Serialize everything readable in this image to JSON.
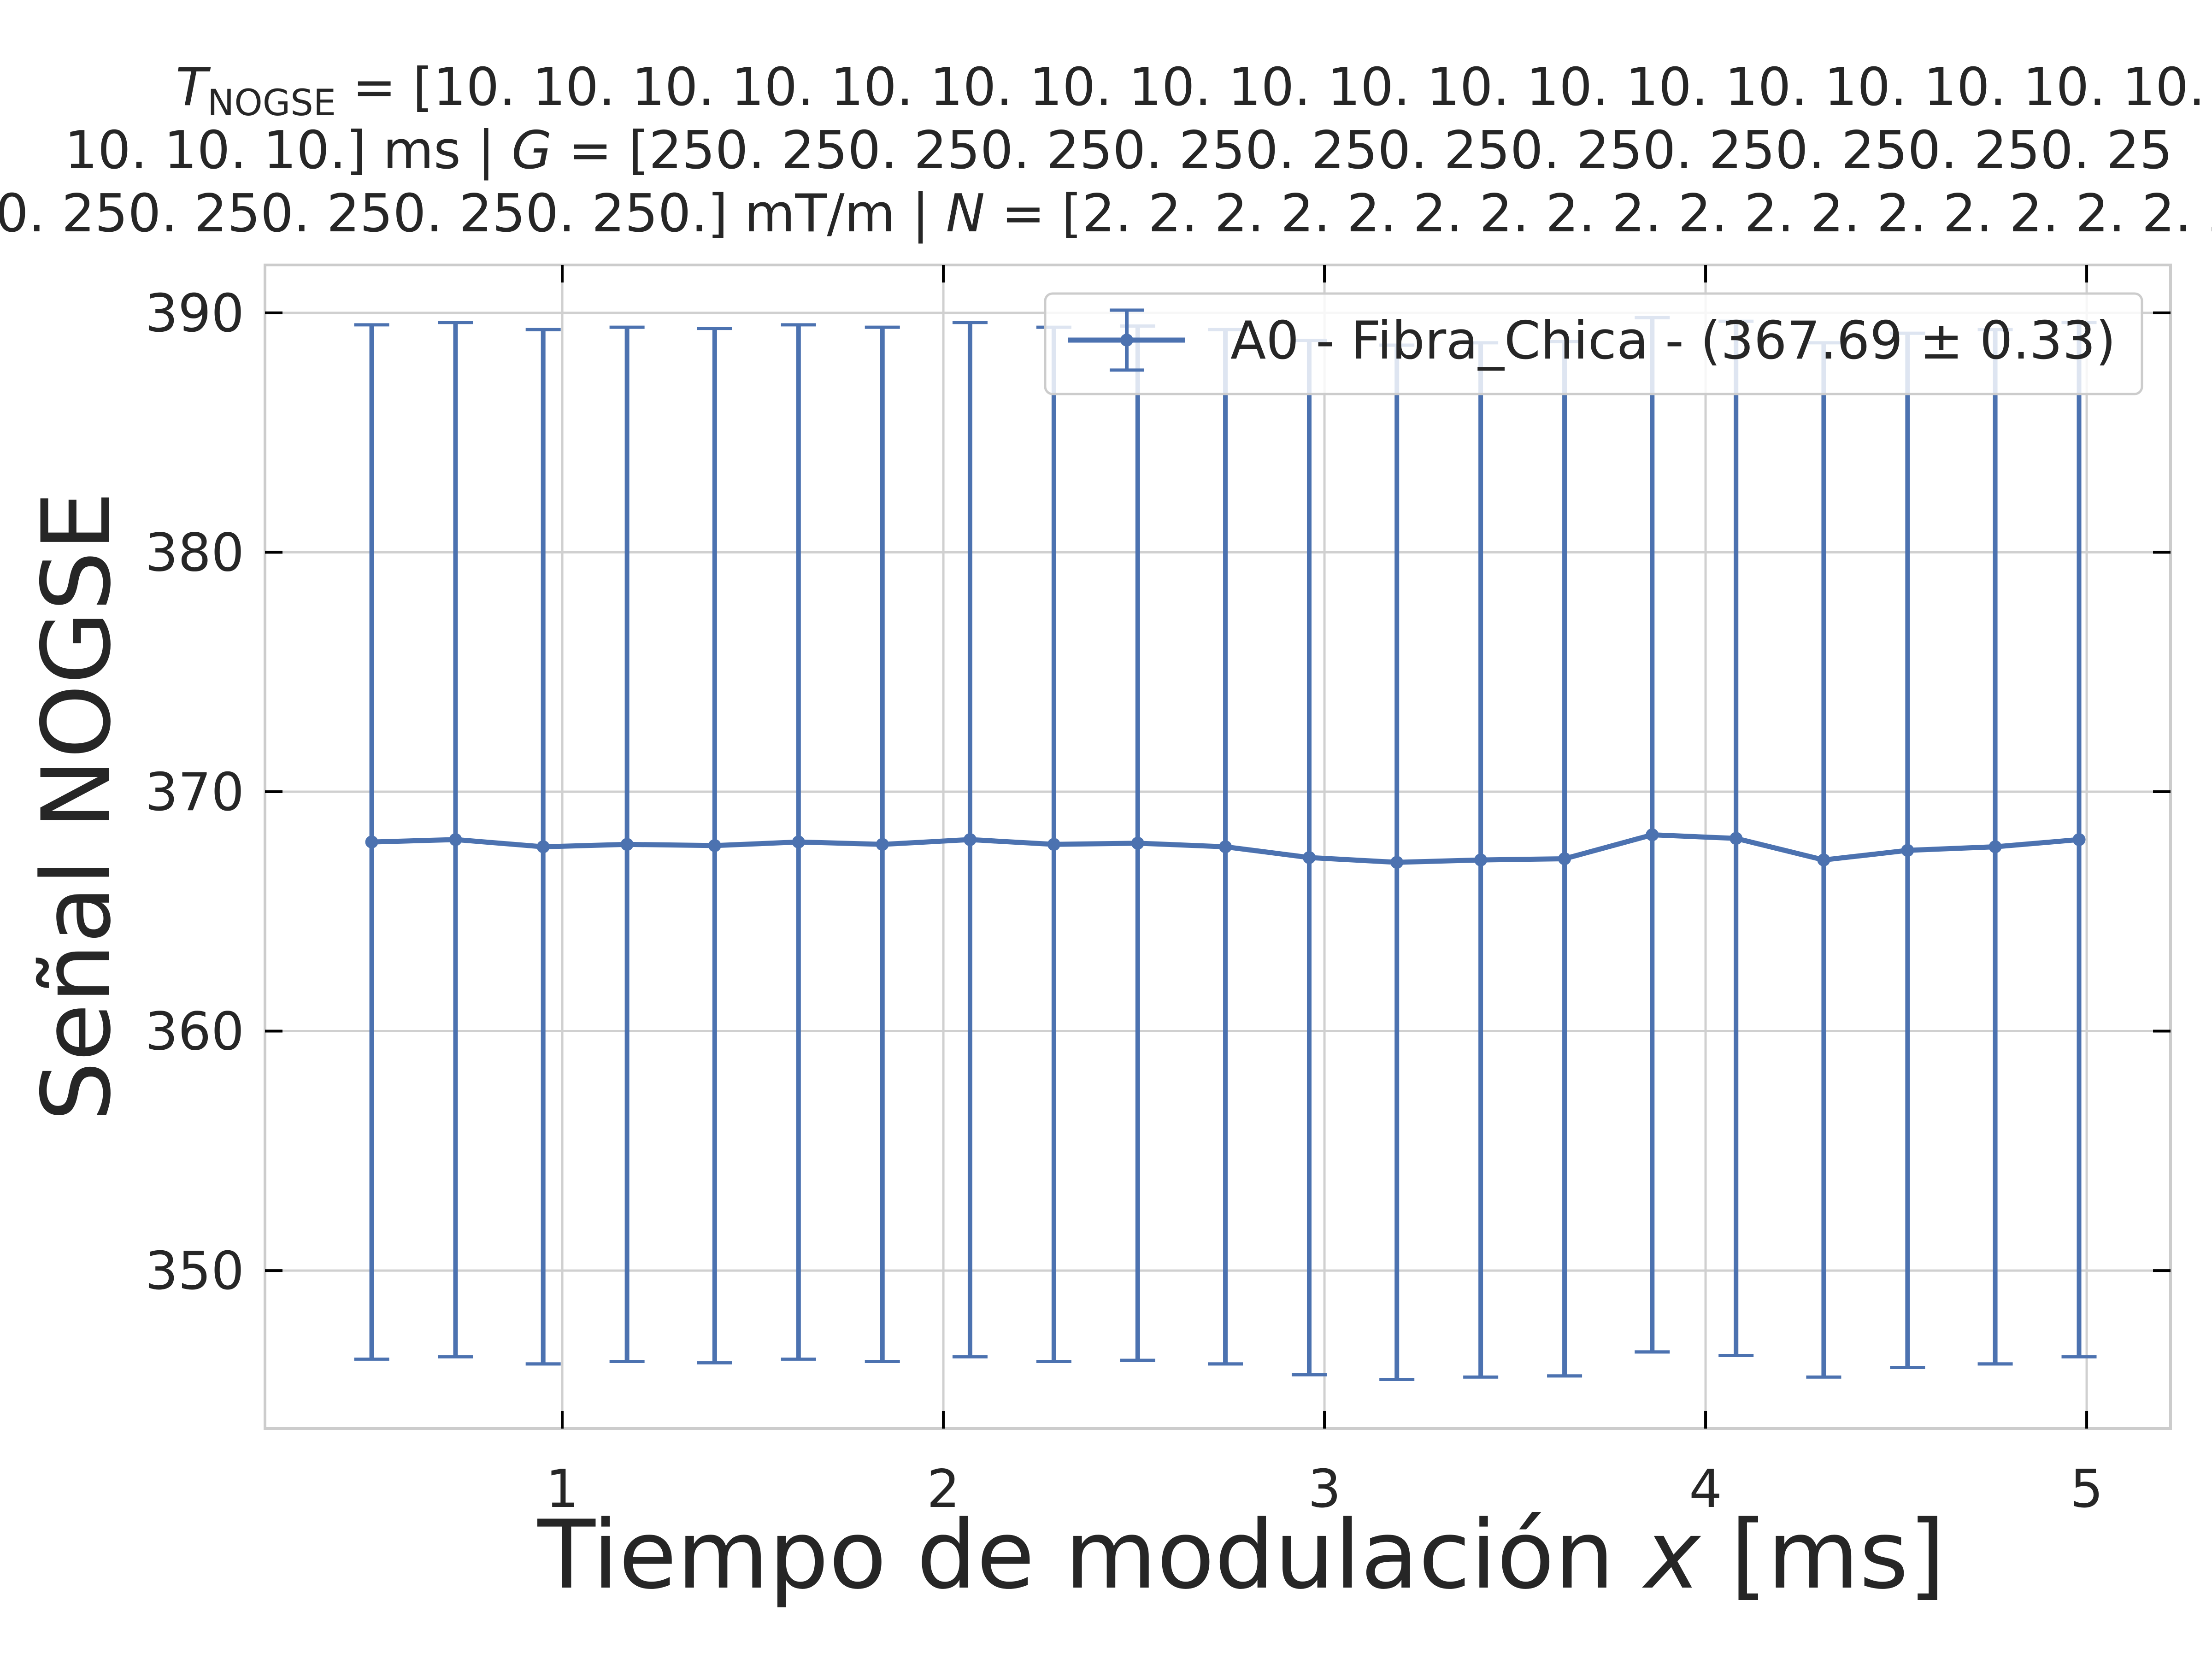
{
  "chart_data": {
    "type": "line",
    "title_lines": [
      "T_NOGSE = [10. 10. 10. 10. 10. 10. 10. 10. 10. 10. 10. 10. 10. 10. 10. 10. 10. 10.",
      "10. 10. 10.] ms | G = [250. 250. 250. 250. 250. 250. 250. 250. 250. 250. 250. 25",
      "0. 250. 250. 250. 250. 250.] mT/m | N = [2. 2. 2. 2. 2. 2. 2. 2. 2. 2. 2. 2. 2. 2. 2. 2. 2. 2"
    ],
    "xlabel": "Tiempo de modulación x [ms]",
    "ylabel": "Señal NOGSE",
    "xlim": [
      0.22,
      5.22
    ],
    "ylim": [
      343.4,
      392.0
    ],
    "xticks": [
      1,
      2,
      3,
      4,
      5
    ],
    "yticks": [
      350,
      360,
      370,
      380,
      390
    ],
    "grid": true,
    "legend_position": "top-right",
    "series": [
      {
        "name": "A0 - Fibra_Chica - (367.69 ± 0.33)",
        "color": "#4c72b0",
        "x": [
          0.5,
          0.72,
          0.95,
          1.17,
          1.4,
          1.62,
          1.84,
          2.07,
          2.29,
          2.51,
          2.74,
          2.96,
          3.19,
          3.41,
          3.63,
          3.86,
          4.08,
          4.31,
          4.53,
          4.76,
          4.98
        ],
        "y": [
          367.9,
          368.0,
          367.7,
          367.8,
          367.75,
          367.9,
          367.8,
          368.0,
          367.8,
          367.85,
          367.7,
          367.25,
          367.05,
          367.15,
          367.2,
          368.2,
          368.05,
          367.15,
          367.55,
          367.7,
          368.0
        ],
        "yerr": [
          21.6,
          21.6,
          21.6,
          21.6,
          21.6,
          21.6,
          21.6,
          21.6,
          21.6,
          21.6,
          21.6,
          21.6,
          21.6,
          21.6,
          21.6,
          21.6,
          21.6,
          21.6,
          21.6,
          21.6,
          21.6
        ]
      }
    ]
  }
}
